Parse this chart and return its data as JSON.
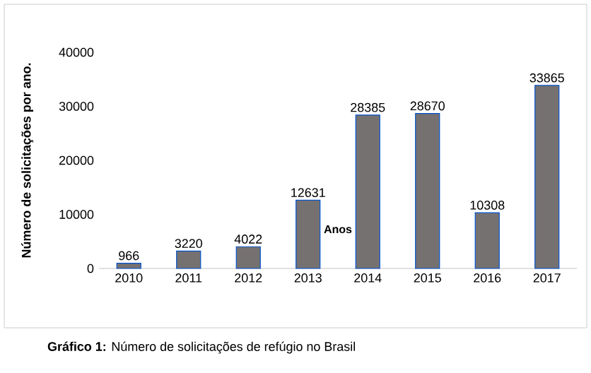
{
  "chart_data": {
    "type": "bar",
    "ylabel": "Número de solicitações por ano.",
    "xlabel": "Anos",
    "categories": [
      "2010",
      "2011",
      "2012",
      "2013",
      "2014",
      "2015",
      "2016",
      "2017"
    ],
    "values": [
      966,
      3220,
      4022,
      12631,
      28385,
      28670,
      10308,
      33865
    ],
    "color": "#767171",
    "data_labels": true,
    "ylim": [
      0,
      40000
    ],
    "yticks": [
      0,
      10000,
      20000,
      30000,
      40000
    ],
    "annotations": [
      "**Gráfico 1:** Número de solicitações de refúgio no Brasil"
    ]
  }
}
